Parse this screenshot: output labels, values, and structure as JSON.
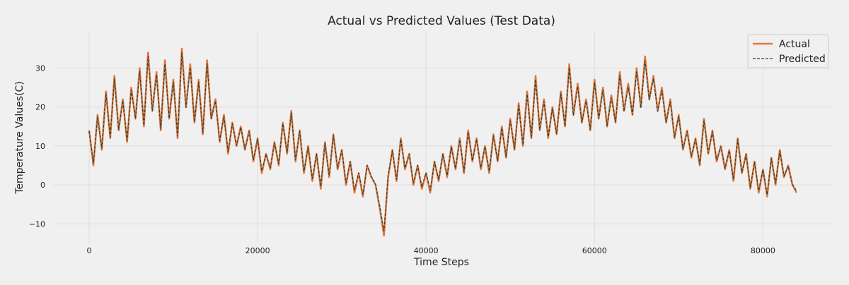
{
  "chart_data": {
    "type": "line",
    "title": "Actual vs Predicted Values (Test Data)",
    "xlabel": "Time Steps",
    "ylabel": "Temperature Values(C)",
    "xlim": [
      -4200,
      88200
    ],
    "ylim": [
      -15,
      39.5
    ],
    "xticks": [
      0,
      20000,
      40000,
      60000,
      80000
    ],
    "yticks": [
      -10,
      0,
      10,
      20,
      30
    ],
    "grid": true,
    "legend_position": "top-right",
    "colors": {
      "actual": "#e8743b",
      "predicted": "#1a4a3a",
      "background": "#f0f0f0",
      "grid": "#dcdcdc"
    },
    "series": [
      {
        "name": "Actual",
        "style": "solid",
        "x": [
          0,
          500,
          1000,
          1500,
          2000,
          2500,
          3000,
          3500,
          4000,
          4500,
          5000,
          5500,
          6000,
          6500,
          7000,
          7500,
          8000,
          8500,
          9000,
          9500,
          10000,
          10500,
          11000,
          11500,
          12000,
          12500,
          13000,
          13500,
          14000,
          14500,
          15000,
          15500,
          16000,
          16500,
          17000,
          17500,
          18000,
          18500,
          19000,
          19500,
          20000,
          20500,
          21000,
          21500,
          22000,
          22500,
          23000,
          23500,
          24000,
          24500,
          25000,
          25500,
          26000,
          26500,
          27000,
          27500,
          28000,
          28500,
          29000,
          29500,
          30000,
          30500,
          31000,
          31500,
          32000,
          32500,
          33000,
          33500,
          34000,
          34500,
          35000,
          35500,
          36000,
          36500,
          37000,
          37500,
          38000,
          38500,
          39000,
          39500,
          40000,
          40500,
          41000,
          41500,
          42000,
          42500,
          43000,
          43500,
          44000,
          44500,
          45000,
          45500,
          46000,
          46500,
          47000,
          47500,
          48000,
          48500,
          49000,
          49500,
          50000,
          50500,
          51000,
          51500,
          52000,
          52500,
          53000,
          53500,
          54000,
          54500,
          55000,
          55500,
          56000,
          56500,
          57000,
          57500,
          58000,
          58500,
          59000,
          59500,
          60000,
          60500,
          61000,
          61500,
          62000,
          62500,
          63000,
          63500,
          64000,
          64500,
          65000,
          65500,
          66000,
          66500,
          67000,
          67500,
          68000,
          68500,
          69000,
          69500,
          70000,
          70500,
          71000,
          71500,
          72000,
          72500,
          73000,
          73500,
          74000,
          74500,
          75000,
          75500,
          76000,
          76500,
          77000,
          77500,
          78000,
          78500,
          79000,
          79500,
          80000,
          80500,
          81000,
          81500,
          82000,
          82500,
          83000,
          83500,
          84000
        ],
        "y": [
          14,
          5,
          18,
          9,
          24,
          12,
          28,
          14,
          22,
          11,
          25,
          17,
          30,
          15,
          34,
          19,
          29,
          14,
          32,
          17,
          27,
          12,
          35,
          20,
          31,
          16,
          27,
          13,
          32,
          17,
          22,
          11,
          18,
          8,
          16,
          10,
          15,
          9,
          14,
          6,
          12,
          3,
          8,
          4,
          11,
          5,
          16,
          8,
          19,
          6,
          14,
          3,
          10,
          1,
          8,
          -1,
          11,
          2,
          13,
          4,
          9,
          0,
          6,
          -2,
          3,
          -3,
          5,
          2,
          0,
          -6,
          -13,
          2,
          9,
          1,
          12,
          4,
          8,
          0,
          5,
          -1,
          3,
          -2,
          6,
          1,
          8,
          2,
          10,
          4,
          12,
          3,
          14,
          6,
          12,
          4,
          10,
          3,
          13,
          6,
          15,
          7,
          17,
          9,
          21,
          10,
          24,
          12,
          28,
          14,
          22,
          12,
          20,
          13,
          24,
          15,
          31,
          18,
          26,
          16,
          22,
          14,
          27,
          17,
          25,
          15,
          23,
          16,
          29,
          19,
          26,
          18,
          30,
          20,
          33,
          22,
          28,
          19,
          25,
          16,
          22,
          12,
          18,
          9,
          14,
          7,
          12,
          5,
          17,
          8,
          14,
          6,
          10,
          4,
          9,
          1,
          12,
          3,
          8,
          -1,
          6,
          -2,
          4,
          -3,
          7,
          0,
          9,
          2,
          5,
          0,
          -2
        ]
      },
      {
        "name": "Predicted",
        "style": "dashed",
        "x": [
          0,
          500,
          1000,
          1500,
          2000,
          2500,
          3000,
          3500,
          4000,
          4500,
          5000,
          5500,
          6000,
          6500,
          7000,
          7500,
          8000,
          8500,
          9000,
          9500,
          10000,
          10500,
          11000,
          11500,
          12000,
          12500,
          13000,
          13500,
          14000,
          14500,
          15000,
          15500,
          16000,
          16500,
          17000,
          17500,
          18000,
          18500,
          19000,
          19500,
          20000,
          20500,
          21000,
          21500,
          22000,
          22500,
          23000,
          23500,
          24000,
          24500,
          25000,
          25500,
          26000,
          26500,
          27000,
          27500,
          28000,
          28500,
          29000,
          29500,
          30000,
          30500,
          31000,
          31500,
          32000,
          32500,
          33000,
          33500,
          34000,
          34500,
          35000,
          35500,
          36000,
          36500,
          37000,
          37500,
          38000,
          38500,
          39000,
          39500,
          40000,
          40500,
          41000,
          41500,
          42000,
          42500,
          43000,
          43500,
          44000,
          44500,
          45000,
          45500,
          46000,
          46500,
          47000,
          47500,
          48000,
          48500,
          49000,
          49500,
          50000,
          50500,
          51000,
          51500,
          52000,
          52500,
          53000,
          53500,
          54000,
          54500,
          55000,
          55500,
          56000,
          56500,
          57000,
          57500,
          58000,
          58500,
          59000,
          59500,
          60000,
          60500,
          61000,
          61500,
          62000,
          62500,
          63000,
          63500,
          64000,
          64500,
          65000,
          65500,
          66000,
          66500,
          67000,
          67500,
          68000,
          68500,
          69000,
          69500,
          70000,
          70500,
          71000,
          71500,
          72000,
          72500,
          73000,
          73500,
          74000,
          74500,
          75000,
          75500,
          76000,
          76500,
          77000,
          77500,
          78000,
          78500,
          79000,
          79500,
          80000,
          80500,
          81000,
          81500,
          82000,
          82500,
          83000,
          83500,
          84000
        ],
        "y": [
          13.8,
          5.6,
          17.5,
          9.4,
          23.4,
          12.3,
          27.2,
          14.2,
          21.6,
          11.4,
          24.3,
          17.1,
          29.1,
          15.3,
          33.0,
          19.0,
          28.3,
          14.4,
          31.1,
          17.1,
          26.4,
          12.5,
          34.0,
          19.8,
          30.2,
          16.2,
          26.4,
          13.4,
          31.1,
          17.0,
          21.6,
          11.4,
          17.6,
          8.5,
          15.7,
          10.1,
          14.8,
          9.2,
          13.7,
          6.5,
          11.8,
          3.6,
          7.9,
          4.4,
          10.8,
          5.4,
          15.7,
          8.3,
          18.5,
          6.4,
          13.8,
          3.5,
          9.8,
          1.6,
          7.9,
          -0.4,
          10.7,
          2.5,
          12.8,
          4.3,
          8.9,
          0.5,
          6.0,
          -1.3,
          3.1,
          -2.4,
          5.0,
          2.3,
          0.2,
          -5.3,
          -11.8,
          2.3,
          8.8,
          1.4,
          11.7,
          4.3,
          7.9,
          0.5,
          5.0,
          -0.5,
          3.1,
          -1.4,
          6.0,
          1.4,
          7.9,
          2.4,
          9.8,
          4.2,
          11.6,
          3.4,
          13.6,
          6.2,
          11.7,
          4.4,
          9.8,
          3.5,
          12.6,
          6.3,
          14.6,
          7.2,
          16.5,
          9.2,
          20.4,
          10.3,
          23.3,
          12.2,
          27.1,
          14.2,
          21.4,
          12.3,
          19.6,
          13.2,
          23.5,
          15.1,
          30.1,
          17.9,
          25.3,
          16.0,
          21.5,
          14.2,
          26.3,
          17.0,
          24.3,
          15.1,
          22.3,
          16.1,
          28.1,
          18.9,
          25.2,
          18.0,
          29.0,
          19.8,
          31.9,
          21.8,
          27.2,
          18.9,
          24.3,
          16.0,
          21.4,
          12.3,
          17.5,
          9.3,
          13.7,
          7.4,
          11.7,
          5.3,
          16.5,
          8.2,
          13.6,
          6.4,
          9.8,
          4.3,
          8.8,
          1.4,
          11.7,
          3.3,
          7.8,
          -0.6,
          5.8,
          -1.5,
          3.9,
          -2.5,
          6.8,
          0.4,
          8.7,
          2.3,
          4.8,
          0.3,
          -1.6
        ]
      }
    ]
  }
}
